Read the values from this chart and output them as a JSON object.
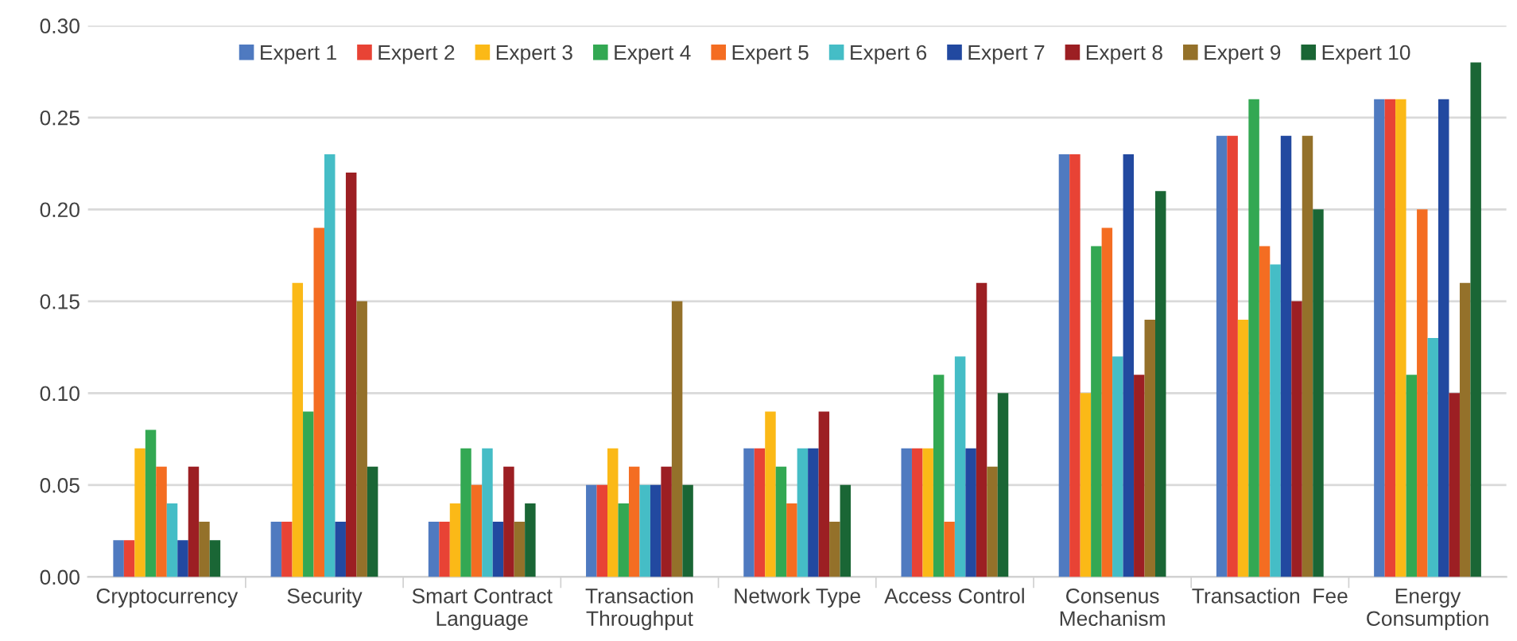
{
  "chart_data": {
    "type": "bar",
    "categories": [
      "Cryptocurrency",
      "Security",
      "Smart Contract\nLanguage",
      "Transaction\nThroughput",
      "Network Type",
      "Access Control",
      "Consenus\nMechanism",
      "Transaction  Fee",
      "Energy\nConsumption"
    ],
    "series": [
      {
        "name": "Expert 1",
        "color": "#4f7ac0",
        "values": [
          0.02,
          0.03,
          0.03,
          0.05,
          0.07,
          0.07,
          0.23,
          0.24,
          0.26
        ]
      },
      {
        "name": "Expert 2",
        "color": "#e84335",
        "values": [
          0.02,
          0.03,
          0.03,
          0.05,
          0.07,
          0.07,
          0.23,
          0.24,
          0.26
        ]
      },
      {
        "name": "Expert 3",
        "color": "#fbb917",
        "values": [
          0.07,
          0.16,
          0.04,
          0.07,
          0.09,
          0.07,
          0.1,
          0.14,
          0.26
        ]
      },
      {
        "name": "Expert 4",
        "color": "#33a853",
        "values": [
          0.08,
          0.09,
          0.07,
          0.04,
          0.06,
          0.11,
          0.18,
          0.26,
          0.11
        ]
      },
      {
        "name": "Expert 5",
        "color": "#f46d22",
        "values": [
          0.06,
          0.19,
          0.05,
          0.06,
          0.04,
          0.03,
          0.19,
          0.18,
          0.2
        ]
      },
      {
        "name": "Expert 6",
        "color": "#45bdc6",
        "values": [
          0.04,
          0.23,
          0.07,
          0.05,
          0.07,
          0.12,
          0.12,
          0.17,
          0.13
        ]
      },
      {
        "name": "Expert 7",
        "color": "#2249a0",
        "values": [
          0.02,
          0.03,
          0.03,
          0.05,
          0.07,
          0.07,
          0.23,
          0.24,
          0.26
        ]
      },
      {
        "name": "Expert 8",
        "color": "#9c1f23",
        "values": [
          0.06,
          0.22,
          0.06,
          0.06,
          0.09,
          0.16,
          0.11,
          0.15,
          0.1
        ]
      },
      {
        "name": "Expert 9",
        "color": "#94712a",
        "values": [
          0.03,
          0.15,
          0.03,
          0.15,
          0.03,
          0.06,
          0.14,
          0.24,
          0.16
        ]
      },
      {
        "name": "Expert 10",
        "color": "#1a6635",
        "values": [
          0.02,
          0.06,
          0.04,
          0.05,
          0.05,
          0.1,
          0.21,
          0.2,
          0.28
        ]
      }
    ],
    "ylim": [
      0,
      0.3
    ],
    "yticks": [
      {
        "value": 0,
        "label": "0.00"
      },
      {
        "value": 0.05,
        "label": "0.05"
      },
      {
        "value": 0.1,
        "label": "0.10"
      },
      {
        "value": 0.15,
        "label": "0.15"
      },
      {
        "value": 0.2,
        "label": "0.20"
      },
      {
        "value": 0.25,
        "label": "0.25"
      },
      {
        "value": 0.3,
        "label": "0.30"
      }
    ],
    "grid": "y",
    "legend": "top"
  }
}
